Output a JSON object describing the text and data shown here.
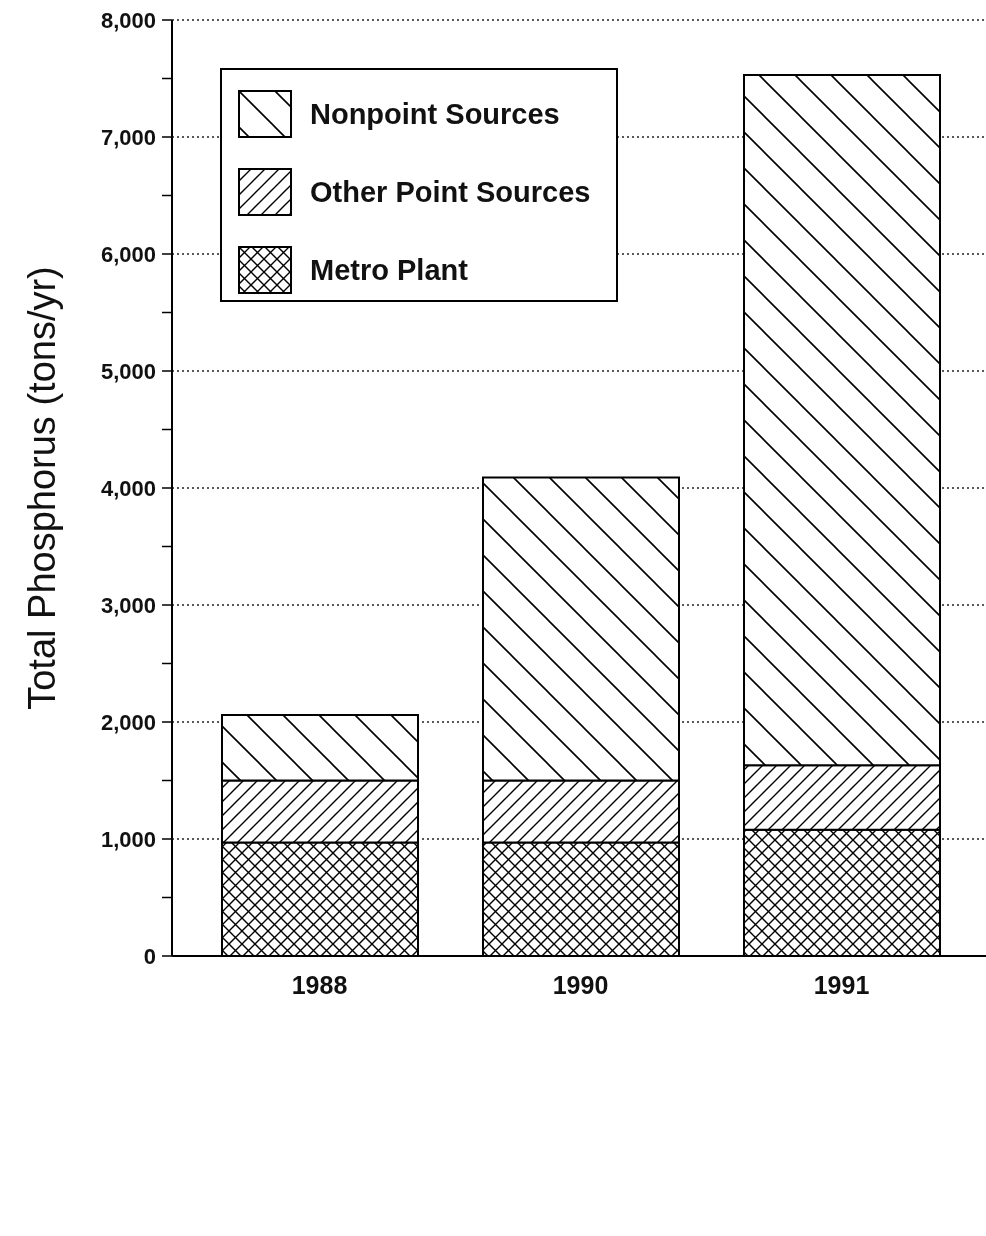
{
  "chart_data": {
    "type": "bar",
    "stacked": true,
    "ylabel": "Total Phosphorus (tons/yr)",
    "categories": [
      "1988",
      "1990",
      "1991"
    ],
    "series": [
      {
        "name": "Metro Plant",
        "color": "#000000",
        "values": [
          970,
          970,
          1080
        ]
      },
      {
        "name": "Other Point Sources",
        "color": "#000000",
        "values": [
          530,
          530,
          550
        ]
      },
      {
        "name": "Nonpoint Sources",
        "color": "#000000",
        "values": [
          560,
          2590,
          5900
        ]
      }
    ],
    "ylim": [
      0,
      8000
    ],
    "yticks": [
      0,
      {
        "value": 500,
        "label": null
      },
      {
        "value": 1000,
        "label": "1,000"
      },
      {
        "value": 1500,
        "label": null
      },
      {
        "value": 2000,
        "label": "2,000"
      },
      {
        "value": 2500,
        "label": null
      },
      {
        "value": 3000,
        "label": "3,000"
      },
      {
        "value": 3500,
        "label": null
      },
      {
        "value": 4000,
        "label": "4,000"
      },
      {
        "value": 4500,
        "label": null
      },
      {
        "value": 5000,
        "label": "5,000"
      },
      {
        "value": 5500,
        "label": null
      },
      {
        "value": 6000,
        "label": "6,000"
      },
      {
        "value": 6500,
        "label": null
      },
      {
        "value": 7000,
        "label": "7,000"
      },
      {
        "value": 7500,
        "label": null
      },
      {
        "value": 8000,
        "label": "8,000"
      }
    ],
    "grid": "y",
    "legend": "top left"
  }
}
